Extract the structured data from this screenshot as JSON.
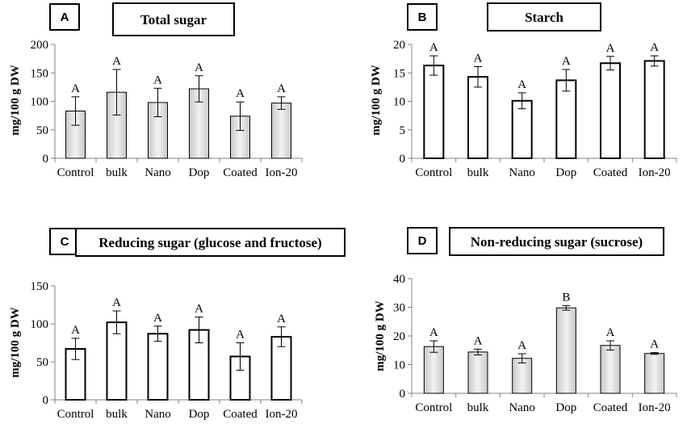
{
  "chart_data": [
    {
      "panel_letter": "A",
      "title": "Total sugar",
      "type": "bar",
      "ylabel": "mg/100 g DW",
      "ylim": [
        0,
        200
      ],
      "yticks": [
        0,
        50,
        100,
        150,
        200
      ],
      "categories": [
        "Control",
        "bulk",
        "Nano",
        "Dop",
        "Coated",
        "Ion-20"
      ],
      "values": [
        83,
        116,
        98,
        122,
        74,
        97
      ],
      "errors": [
        25,
        40,
        25,
        23,
        25,
        11
      ],
      "significance": [
        "A",
        "A",
        "A",
        "A",
        "A",
        "A"
      ],
      "fill": "gradient",
      "grid": false
    },
    {
      "panel_letter": "B",
      "title": "Starch",
      "type": "bar",
      "ylabel": "mg/100 g DW",
      "ylim": [
        0,
        20
      ],
      "yticks": [
        0,
        5,
        10,
        15,
        20
      ],
      "categories": [
        "Control",
        "bulk",
        "Nano",
        "Dop",
        "Coated",
        "Ion-20"
      ],
      "values": [
        16.3,
        14.3,
        10.1,
        13.7,
        16.7,
        17.1
      ],
      "errors": [
        1.7,
        1.8,
        1.4,
        1.9,
        1.2,
        0.9
      ],
      "significance": [
        "A",
        "A",
        "A",
        "A",
        "A",
        "A"
      ],
      "fill": "white",
      "grid": false
    },
    {
      "panel_letter": "C",
      "title": "Reducing sugar (glucose and fructose)",
      "type": "bar",
      "ylabel": "mg/100 g DW",
      "ylim": [
        0,
        150
      ],
      "yticks": [
        0,
        50,
        100,
        150
      ],
      "categories": [
        "Control",
        "bulk",
        "Nano",
        "Dop",
        "Coated",
        "Ion-20"
      ],
      "values": [
        67,
        102,
        87,
        92,
        57,
        83
      ],
      "errors": [
        14,
        15,
        10,
        17,
        18,
        13
      ],
      "significance": [
        "A",
        "A",
        "A",
        "A",
        "A",
        "A"
      ],
      "fill": "white",
      "grid": false
    },
    {
      "panel_letter": "D",
      "title": "Non-reducing sugar (sucrose)",
      "type": "bar",
      "ylabel": "mg/100 g DW",
      "ylim": [
        0,
        40
      ],
      "yticks": [
        0,
        10,
        20,
        30,
        40
      ],
      "categories": [
        "Control",
        "bulk",
        "Nano",
        "Dop",
        "Coated",
        "Ion-20"
      ],
      "values": [
        16.3,
        14.4,
        12.2,
        29.8,
        16.7,
        13.9
      ],
      "errors": [
        2.0,
        1.0,
        1.6,
        0.8,
        1.6,
        0.3
      ],
      "significance": [
        "A",
        "A",
        "A",
        "B",
        "A",
        "A"
      ],
      "fill": "gradient",
      "grid": false
    }
  ]
}
